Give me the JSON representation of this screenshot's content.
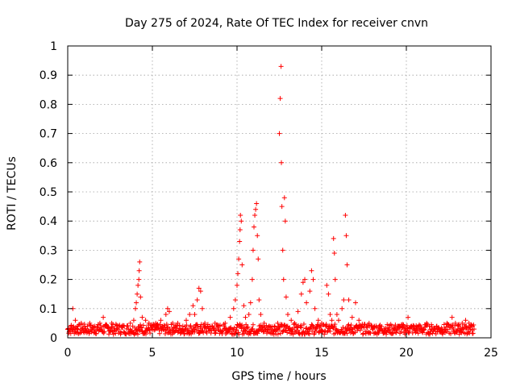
{
  "chart_data": {
    "type": "scatter",
    "title": "Day 275 of 2024, Rate Of TEC Index for receiver cnvn",
    "xlabel": "GPS time / hours",
    "ylabel": "ROTI / TECUs",
    "xlim": [
      0,
      25
    ],
    "ylim": [
      0,
      1
    ],
    "x_ticks": [
      "0",
      "5",
      "10",
      "15",
      "20",
      "25"
    ],
    "y_ticks": [
      "0",
      "0.1",
      "0.2",
      "0.3",
      "0.4",
      "0.5",
      "0.6",
      "0.7",
      "0.8",
      "0.9",
      "1"
    ],
    "grid": true,
    "marker": "+",
    "marker_color": "#ff0000",
    "series": [
      {
        "points": [
          [
            0.05,
            0.03
          ],
          [
            0.2,
            0.04
          ],
          [
            0.3,
            0.1
          ],
          [
            0.45,
            0.06
          ],
          [
            0.6,
            0.04
          ],
          [
            0.8,
            0.05
          ],
          [
            1.0,
            0.04
          ],
          [
            1.3,
            0.05
          ],
          [
            1.6,
            0.04
          ],
          [
            1.9,
            0.05
          ],
          [
            2.1,
            0.07
          ],
          [
            2.3,
            0.04
          ],
          [
            2.6,
            0.05
          ],
          [
            2.9,
            0.04
          ],
          [
            3.2,
            0.04
          ],
          [
            3.5,
            0.04
          ],
          [
            3.7,
            0.05
          ],
          [
            3.9,
            0.06
          ],
          [
            4.0,
            0.1
          ],
          [
            4.05,
            0.12
          ],
          [
            4.1,
            0.15
          ],
          [
            4.15,
            0.18
          ],
          [
            4.2,
            0.2
          ],
          [
            4.22,
            0.23
          ],
          [
            4.25,
            0.26
          ],
          [
            4.3,
            0.14
          ],
          [
            4.4,
            0.07
          ],
          [
            4.6,
            0.06
          ],
          [
            4.8,
            0.05
          ],
          [
            5.0,
            0.04
          ],
          [
            5.2,
            0.05
          ],
          [
            5.5,
            0.06
          ],
          [
            5.8,
            0.08
          ],
          [
            5.9,
            0.1
          ],
          [
            6.0,
            0.09
          ],
          [
            6.2,
            0.05
          ],
          [
            6.5,
            0.05
          ],
          [
            6.8,
            0.04
          ],
          [
            7.0,
            0.06
          ],
          [
            7.2,
            0.08
          ],
          [
            7.4,
            0.11
          ],
          [
            7.5,
            0.08
          ],
          [
            7.65,
            0.13
          ],
          [
            7.75,
            0.17
          ],
          [
            7.85,
            0.16
          ],
          [
            7.95,
            0.1
          ],
          [
            8.1,
            0.05
          ],
          [
            8.4,
            0.04
          ],
          [
            8.7,
            0.05
          ],
          [
            9.0,
            0.04
          ],
          [
            9.3,
            0.05
          ],
          [
            9.6,
            0.07
          ],
          [
            9.8,
            0.1
          ],
          [
            9.9,
            0.13
          ],
          [
            10.0,
            0.18
          ],
          [
            10.05,
            0.22
          ],
          [
            10.1,
            0.27
          ],
          [
            10.15,
            0.33
          ],
          [
            10.18,
            0.37
          ],
          [
            10.2,
            0.42
          ],
          [
            10.25,
            0.4
          ],
          [
            10.3,
            0.25
          ],
          [
            10.4,
            0.11
          ],
          [
            10.5,
            0.07
          ],
          [
            10.7,
            0.08
          ],
          [
            10.8,
            0.12
          ],
          [
            10.9,
            0.2
          ],
          [
            10.95,
            0.3
          ],
          [
            11.0,
            0.38
          ],
          [
            11.05,
            0.42
          ],
          [
            11.1,
            0.44
          ],
          [
            11.15,
            0.46
          ],
          [
            11.2,
            0.35
          ],
          [
            11.25,
            0.27
          ],
          [
            11.3,
            0.13
          ],
          [
            11.4,
            0.08
          ],
          [
            11.6,
            0.05
          ],
          [
            11.9,
            0.04
          ],
          [
            12.2,
            0.04
          ],
          [
            12.4,
            0.05
          ],
          [
            12.5,
            0.7
          ],
          [
            12.55,
            0.82
          ],
          [
            12.6,
            0.93
          ],
          [
            12.62,
            0.6
          ],
          [
            12.65,
            0.45
          ],
          [
            12.7,
            0.3
          ],
          [
            12.75,
            0.2
          ],
          [
            12.8,
            0.48
          ],
          [
            12.85,
            0.4
          ],
          [
            12.9,
            0.14
          ],
          [
            13.0,
            0.08
          ],
          [
            13.2,
            0.06
          ],
          [
            13.4,
            0.05
          ],
          [
            13.6,
            0.09
          ],
          [
            13.8,
            0.15
          ],
          [
            13.9,
            0.19
          ],
          [
            14.0,
            0.2
          ],
          [
            14.1,
            0.12
          ],
          [
            14.3,
            0.16
          ],
          [
            14.4,
            0.23
          ],
          [
            14.5,
            0.2
          ],
          [
            14.6,
            0.1
          ],
          [
            14.8,
            0.06
          ],
          [
            15.0,
            0.05
          ],
          [
            15.3,
            0.18
          ],
          [
            15.4,
            0.15
          ],
          [
            15.5,
            0.08
          ],
          [
            15.6,
            0.06
          ],
          [
            15.7,
            0.34
          ],
          [
            15.75,
            0.29
          ],
          [
            15.8,
            0.2
          ],
          [
            15.9,
            0.08
          ],
          [
            16.0,
            0.06
          ],
          [
            16.2,
            0.1
          ],
          [
            16.3,
            0.13
          ],
          [
            16.4,
            0.42
          ],
          [
            16.45,
            0.35
          ],
          [
            16.5,
            0.25
          ],
          [
            16.6,
            0.13
          ],
          [
            16.8,
            0.07
          ],
          [
            17.0,
            0.12
          ],
          [
            17.2,
            0.06
          ],
          [
            17.5,
            0.04
          ],
          [
            17.8,
            0.05
          ],
          [
            18.1,
            0.04
          ],
          [
            18.4,
            0.04
          ],
          [
            18.7,
            0.03
          ],
          [
            19.0,
            0.03
          ],
          [
            19.3,
            0.03
          ],
          [
            19.6,
            0.04
          ],
          [
            19.9,
            0.03
          ],
          [
            20.1,
            0.07
          ],
          [
            20.3,
            0.04
          ],
          [
            20.6,
            0.03
          ],
          [
            20.9,
            0.03
          ],
          [
            21.2,
            0.05
          ],
          [
            21.5,
            0.03
          ],
          [
            21.8,
            0.04
          ],
          [
            22.1,
            0.03
          ],
          [
            22.4,
            0.05
          ],
          [
            22.7,
            0.07
          ],
          [
            22.9,
            0.05
          ],
          [
            23.1,
            0.04
          ],
          [
            23.3,
            0.05
          ],
          [
            23.5,
            0.06
          ],
          [
            23.7,
            0.05
          ],
          [
            23.9,
            0.04
          ],
          [
            24.0,
            0.03
          ]
        ]
      }
    ]
  }
}
